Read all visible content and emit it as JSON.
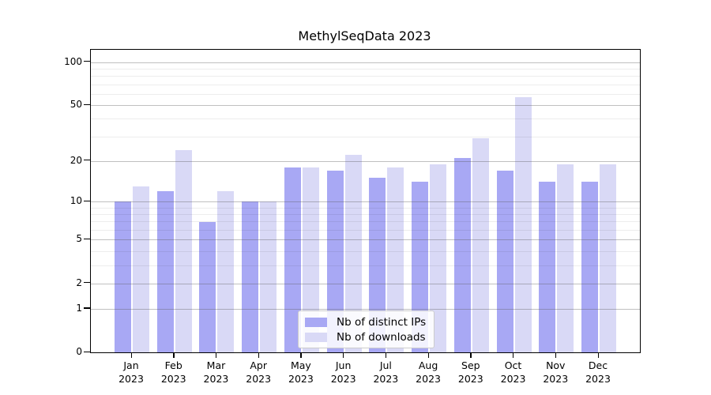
{
  "title": "MethylSeqData 2023",
  "chart_data": {
    "type": "bar",
    "title": "MethylSeqData 2023",
    "categories": [
      "Jan 2023",
      "Feb 2023",
      "Mar 2023",
      "Apr 2023",
      "May 2023",
      "Jun 2023",
      "Jul 2023",
      "Aug 2023",
      "Sep 2023",
      "Oct 2023",
      "Nov 2023",
      "Dec 2023"
    ],
    "series": [
      {
        "name": "Nb of distinct IPs",
        "color": "#a8a8f4",
        "values": [
          10,
          12,
          7,
          10,
          18,
          17,
          15,
          14,
          21,
          17,
          14,
          14
        ]
      },
      {
        "name": "Nb of downloads",
        "color": "#d9d9f6",
        "values": [
          13,
          24,
          12,
          10,
          18,
          22,
          18,
          19,
          29,
          57,
          19,
          19
        ]
      }
    ],
    "xlabel": "",
    "ylabel": "",
    "yscale": "log1p",
    "ylim": [
      0,
      122
    ],
    "y_major_ticks": [
      0,
      1,
      2,
      5,
      10,
      20,
      50,
      100
    ],
    "y_minor_ticks": [
      3,
      4,
      6,
      7,
      8,
      9,
      30,
      40,
      60,
      70,
      80,
      90
    ],
    "grid": "on",
    "legend_position": "lower center",
    "spine_color": "#000000",
    "major_grid_color": "#b5b5b5",
    "minor_grid_color": "#ebebeb"
  }
}
